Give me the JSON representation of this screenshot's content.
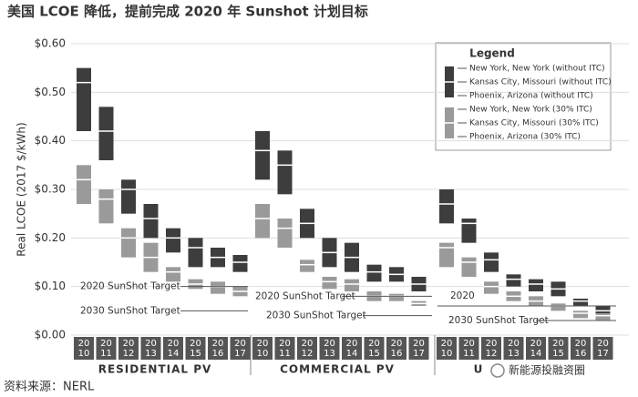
{
  "chart_data": {
    "type": "floating-box",
    "title": "美国 LCOE 降低，提前完成 2020 年 Sunshot 计划目标",
    "y_label": "Real LCOE (2017 $/kWh)",
    "source": "资料来源：NERL",
    "watermark": "新能源投融资圈",
    "legend_title": "Legend",
    "ylim": [
      0,
      0.6
    ],
    "yticks": [
      {
        "value": 0,
        "label": "$0.00"
      },
      {
        "value": 0.1,
        "label": "$0.10"
      },
      {
        "value": 0.2,
        "label": "$0.20"
      },
      {
        "value": 0.3,
        "label": "$0.30"
      },
      {
        "value": 0.4,
        "label": "$0.40"
      },
      {
        "value": 0.5,
        "label": "$0.50"
      },
      {
        "value": 0.6,
        "label": "$0.60"
      }
    ],
    "grid": true,
    "groups": [
      {
        "label": "RESIDENTIAL PV",
        "categories": [
          [
            "20",
            "10"
          ],
          [
            "20",
            "11"
          ],
          [
            "20",
            "12"
          ],
          [
            "20",
            "13"
          ],
          [
            "20",
            "14"
          ],
          [
            "20",
            "15"
          ],
          [
            "20",
            "16"
          ],
          [
            "20",
            "17"
          ]
        ],
        "targets": [
          {
            "label": "2020 SunShot Target",
            "value": 0.1
          },
          {
            "label": "2030 SunShot Target",
            "value": 0.05
          }
        ]
      },
      {
        "label": "COMMERCIAL PV",
        "categories": [
          [
            "20",
            "10"
          ],
          [
            "20",
            "11"
          ],
          [
            "20",
            "12"
          ],
          [
            "20",
            "13"
          ],
          [
            "20",
            "14"
          ],
          [
            "20",
            "15"
          ],
          [
            "20",
            "16"
          ],
          [
            "20",
            "17"
          ]
        ],
        "targets": [
          {
            "label": "2020 SunShot Target",
            "value": 0.08
          },
          {
            "label": "2030 SunShot Target",
            "value": 0.04
          }
        ]
      },
      {
        "label": "U",
        "categories": [
          [
            "20",
            "10"
          ],
          [
            "20",
            "11"
          ],
          [
            "20",
            "12"
          ],
          [
            "20",
            "13"
          ],
          [
            "20",
            "14"
          ],
          [
            "20",
            "15"
          ],
          [
            "20",
            "16"
          ],
          [
            "20",
            "17"
          ]
        ],
        "targets": [
          {
            "label": "2020",
            "value": 0.06
          },
          {
            "label": "2030 SunShot Target",
            "value": 0.03
          }
        ]
      }
    ],
    "series": [
      {
        "name": "New York, New York (without ITC)",
        "color": "#3d3d3d",
        "values": [
          [
            0.55,
            0.47,
            0.32,
            0.27,
            0.22,
            0.2,
            0.18,
            0.165
          ],
          [
            0.42,
            0.38,
            0.26,
            0.2,
            0.19,
            0.145,
            0.14,
            0.12
          ],
          [
            0.3,
            0.24,
            0.17,
            0.125,
            0.115,
            0.11,
            0.075,
            0.06
          ]
        ]
      },
      {
        "name": "Kansas City, Missouri (without ITC)",
        "color": "#ffffff",
        "values": [
          [
            0.52,
            0.42,
            0.3,
            0.24,
            0.2,
            0.18,
            0.16,
            0.15
          ],
          [
            0.38,
            0.35,
            0.23,
            0.17,
            0.16,
            0.13,
            0.125,
            0.105
          ],
          [
            0.27,
            0.23,
            0.155,
            0.115,
            0.105,
            0.095,
            0.07,
            0.05
          ]
        ]
      },
      {
        "name": "Phoenix, Arizona (without ITC)",
        "color": "#3d3d3d",
        "values": [
          [
            0.42,
            0.36,
            0.25,
            0.2,
            0.17,
            0.14,
            0.14,
            0.13
          ],
          [
            0.32,
            0.29,
            0.2,
            0.14,
            0.13,
            0.11,
            0.11,
            0.09
          ],
          [
            0.23,
            0.19,
            0.13,
            0.1,
            0.09,
            0.08,
            0.06,
            0.04
          ]
        ]
      },
      {
        "name": "New York, New York (30% ITC)",
        "color": "#9a9a9a",
        "values": [
          [
            0.35,
            0.3,
            0.22,
            0.19,
            0.14,
            0.115,
            0.11,
            0.1
          ],
          [
            0.27,
            0.24,
            0.155,
            0.12,
            0.115,
            0.09,
            0.085,
            0.07
          ],
          [
            0.19,
            0.16,
            0.11,
            0.09,
            0.08,
            0.065,
            0.05,
            0.045
          ]
        ]
      },
      {
        "name": "Kansas City, Missouri (30% ITC)",
        "color": "#ffffff",
        "values": [
          [
            0.32,
            0.28,
            0.2,
            0.16,
            0.13,
            0.105,
            0.1,
            0.09
          ],
          [
            0.24,
            0.22,
            0.145,
            0.11,
            0.105,
            0.08,
            0.08,
            0.065
          ],
          [
            0.18,
            0.15,
            0.1,
            0.08,
            0.07,
            0.06,
            0.045,
            0.04
          ]
        ]
      },
      {
        "name": "Phoenix, Arizona (30% ITC)",
        "color": "#9a9a9a",
        "values": [
          [
            0.27,
            0.23,
            0.16,
            0.13,
            0.11,
            0.095,
            0.085,
            0.08
          ],
          [
            0.2,
            0.18,
            0.13,
            0.095,
            0.09,
            0.07,
            0.07,
            0.06
          ],
          [
            0.14,
            0.12,
            0.085,
            0.07,
            0.06,
            0.05,
            0.035,
            0.03
          ]
        ]
      }
    ]
  }
}
